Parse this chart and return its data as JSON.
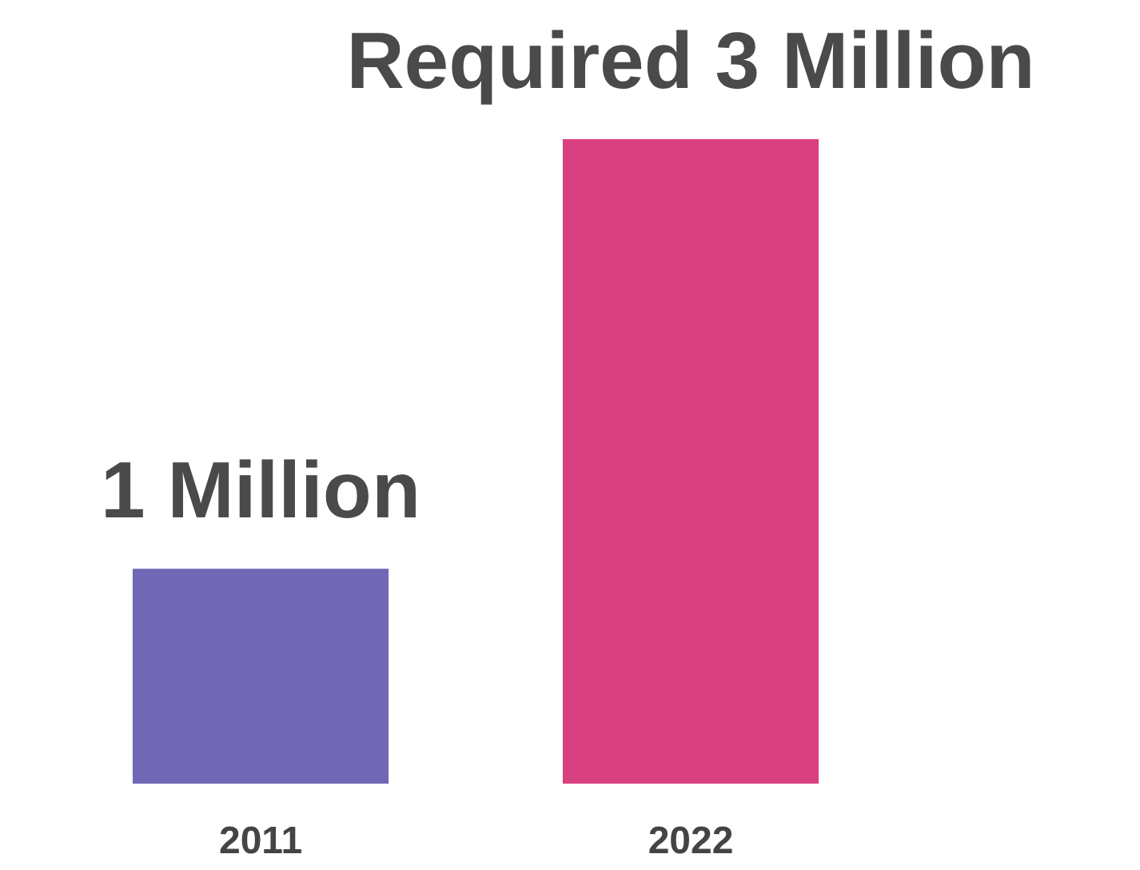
{
  "chart_data": {
    "type": "bar",
    "categories": [
      "2011",
      "2022"
    ],
    "values": [
      1,
      3
    ],
    "value_labels": [
      "1 Million",
      "Required 3 Million"
    ],
    "colors": [
      "#7068b4",
      "#d9407f"
    ]
  }
}
